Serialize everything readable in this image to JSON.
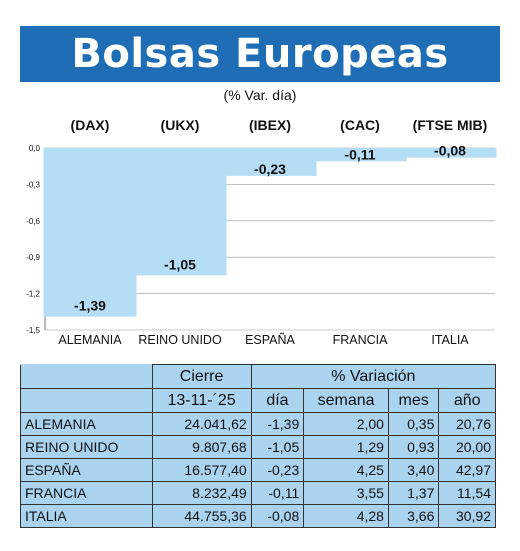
{
  "title": "Bolsas Europeas",
  "subtitle": "(% Var. día)",
  "chart_data": {
    "type": "bar",
    "indices": [
      "(DAX)",
      "(UKX)",
      "(IBEX)",
      "(CAC)",
      "(FTSE MIB)"
    ],
    "categories": [
      "ALEMANIA",
      "REINO UNIDO",
      "ESPAÑA",
      "FRANCIA",
      "ITALIA"
    ],
    "values": [
      -1.39,
      -1.05,
      -0.23,
      -0.11,
      -0.08
    ],
    "value_labels": [
      "-1,39",
      "-1,05",
      "-0,23",
      "-0,11",
      "-0,08"
    ],
    "ylim": [
      -1.5,
      0
    ],
    "yticks": [
      0,
      -0.3,
      -0.6,
      -0.9,
      -1.2,
      -1.5
    ],
    "ytick_labels": [
      "0,0",
      "-0,3",
      "-0,6",
      "-0,9",
      "-1,2",
      "-1,5"
    ],
    "grid": true,
    "bar_color": "#b5def6"
  },
  "table": {
    "header_cierre": "Cierre",
    "header_variacion": "% Variación",
    "date": "13-11-´25",
    "cols": [
      "día",
      "semana",
      "mes",
      "año"
    ],
    "rows": [
      {
        "country": "ALEMANIA",
        "cierre": "24.041,62",
        "dia": "-1,39",
        "semana": "2,00",
        "mes": "0,35",
        "ano": "20,76"
      },
      {
        "country": "REINO UNIDO",
        "cierre": "9.807,68",
        "dia": "-1,05",
        "semana": "1,29",
        "mes": "0,93",
        "ano": "20,00"
      },
      {
        "country": "ESPAÑA",
        "cierre": "16.577,40",
        "dia": "-0,23",
        "semana": "4,25",
        "mes": "3,40",
        "ano": "42,97"
      },
      {
        "country": "FRANCIA",
        "cierre": "8.232,49",
        "dia": "-0,11",
        "semana": "3,55",
        "mes": "1,37",
        "ano": "11,54"
      },
      {
        "country": "ITALIA",
        "cierre": "44.755,36",
        "dia": "-0,08",
        "semana": "4,28",
        "mes": "3,66",
        "ano": "30,92"
      }
    ]
  }
}
